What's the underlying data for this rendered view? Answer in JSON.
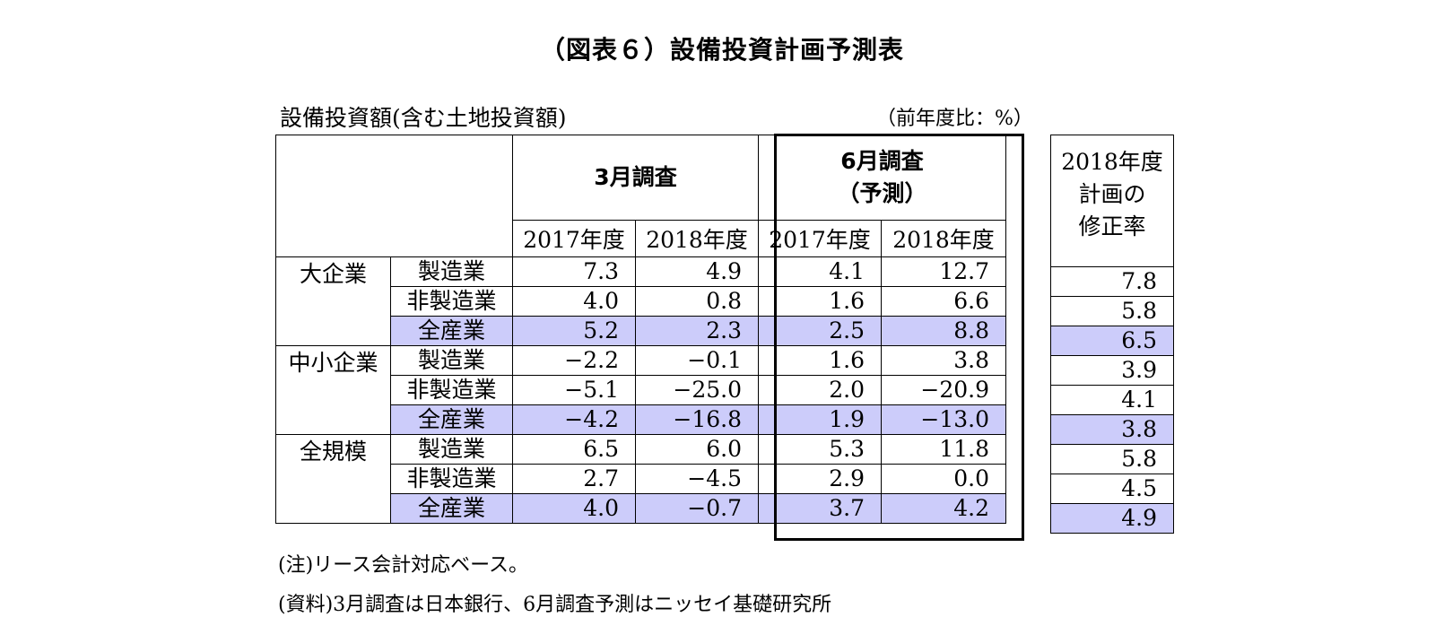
{
  "title": "（図表６）設備投資計画予測表",
  "caption": "設備投資額(含む土地投資額)",
  "unit": "（前年度比：%）",
  "header": {
    "survey_march": "3月調査",
    "survey_june": [
      "6月調査",
      "（予測）"
    ],
    "years": [
      "2017年度",
      "2018年度",
      "2017年度",
      "2018年度"
    ],
    "revision": [
      "2018年度",
      "計画の",
      "修正率"
    ]
  },
  "groups": [
    {
      "name": "大企業",
      "rows": [
        {
          "sector": "製造業",
          "values": [
            "7.3",
            "4.9",
            "4.1",
            "12.7"
          ],
          "revision": "7.8"
        },
        {
          "sector": "非製造業",
          "values": [
            "4.0",
            "0.8",
            "1.6",
            "6.6"
          ],
          "revision": "5.8"
        },
        {
          "sector": "全産業",
          "values": [
            "5.2",
            "2.3",
            "2.5",
            "8.8"
          ],
          "revision": "6.5"
        }
      ]
    },
    {
      "name": "中小企業",
      "rows": [
        {
          "sector": "製造業",
          "values": [
            "−2.2",
            "−0.1",
            "1.6",
            "3.8"
          ],
          "revision": "3.9"
        },
        {
          "sector": "非製造業",
          "values": [
            "−5.1",
            "−25.0",
            "2.0",
            "−20.9"
          ],
          "revision": "4.1"
        },
        {
          "sector": "全産業",
          "values": [
            "−4.2",
            "−16.8",
            "1.9",
            "−13.0"
          ],
          "revision": "3.8"
        }
      ]
    },
    {
      "name": "全規模",
      "rows": [
        {
          "sector": "製造業",
          "values": [
            "6.5",
            "6.0",
            "5.3",
            "11.8"
          ],
          "revision": "5.8"
        },
        {
          "sector": "非製造業",
          "values": [
            "2.7",
            "−4.5",
            "2.9",
            "0.0"
          ],
          "revision": "4.5"
        },
        {
          "sector": "全産業",
          "values": [
            "4.0",
            "−0.7",
            "3.7",
            "4.2"
          ],
          "revision": "4.9"
        }
      ]
    }
  ],
  "highlight_color": "#ccccfa",
  "notes": [
    "(注)リース会計対応ベース。",
    "(資料)3月調査は日本銀行、6月調査予測はニッセイ基礎研究所"
  ]
}
